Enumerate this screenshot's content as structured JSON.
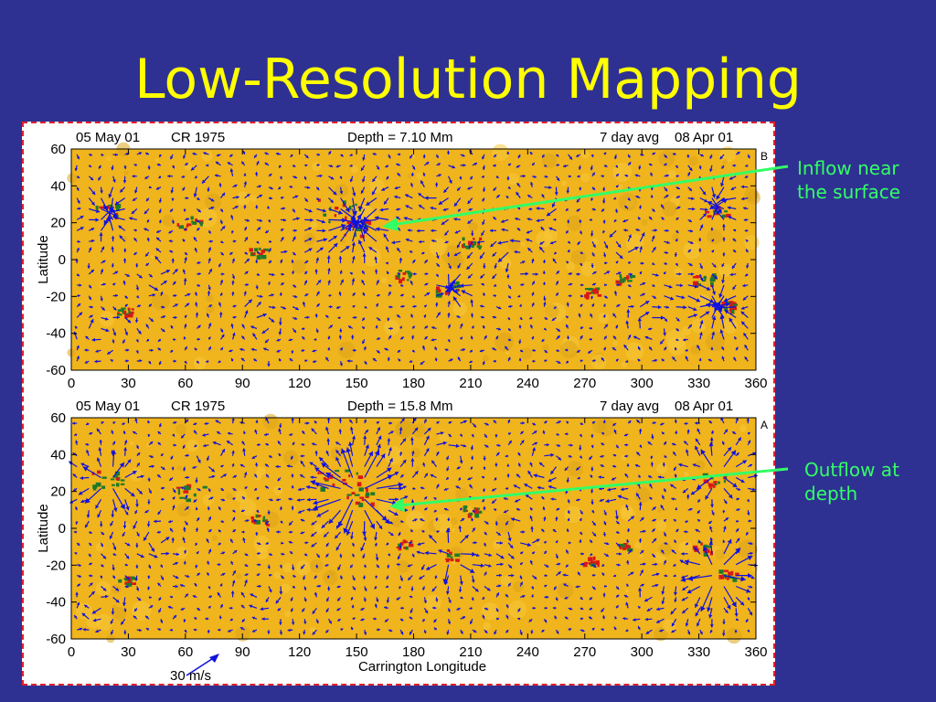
{
  "slide": {
    "title": "Low-Resolution Mapping"
  },
  "colors": {
    "background": "#2e3191",
    "title": "#ffff00",
    "map_fill": "#f0b41c",
    "flow_arrows": "#1010e0",
    "annotation": "#33ff66",
    "frame_border": "#e0202a",
    "active_region_red": "#d81818",
    "active_region_green": "#1e7a2a"
  },
  "panels": [
    {
      "id": "top",
      "header": {
        "date": "05 May 01",
        "rotation": "CR 1975",
        "depth": "Depth = 7.10 Mm",
        "average": "7 day avg",
        "ref_date": "08 Apr 01"
      },
      "panel_letter": "B",
      "ylabel": "Latitude",
      "yticks": [
        "60",
        "40",
        "20",
        "0",
        "-20",
        "-40",
        "-60"
      ],
      "xticks": [
        "0",
        "30",
        "60",
        "90",
        "120",
        "150",
        "180",
        "210",
        "240",
        "270",
        "300",
        "330",
        "360"
      ],
      "flow": "inflow"
    },
    {
      "id": "bottom",
      "header": {
        "date": "05 May 01",
        "rotation": "CR 1975",
        "depth": "Depth = 15.8 Mm",
        "average": "7 day avg",
        "ref_date": "08 Apr 01"
      },
      "panel_letter": "A",
      "ylabel": "Latitude",
      "yticks": [
        "60",
        "40",
        "20",
        "0",
        "-20",
        "-40",
        "-60"
      ],
      "xticks": [
        "0",
        "30",
        "60",
        "90",
        "120",
        "150",
        "180",
        "210",
        "240",
        "270",
        "300",
        "330",
        "360"
      ],
      "xlabel": "Carrington Longitude",
      "flow": "outflow"
    }
  ],
  "scale_bar": {
    "label": "30 m/s"
  },
  "annotations": [
    {
      "id": "inflow",
      "lines": [
        "Inflow near",
        "the surface"
      ]
    },
    {
      "id": "outflow",
      "lines": [
        "Outflow at",
        "depth"
      ]
    }
  ]
}
